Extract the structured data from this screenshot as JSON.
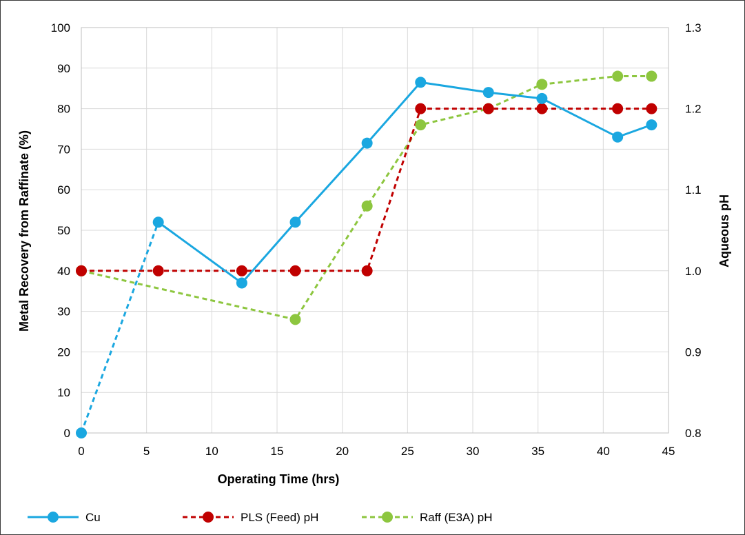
{
  "chart_data": {
    "type": "line",
    "xlabel": "Operating Time (hrs)",
    "ylabel": "Metal Recovery from Raffinate (%)",
    "y2label": "Aqueous pH",
    "xlim": [
      0,
      45
    ],
    "ylim": [
      0,
      100
    ],
    "y2lim": [
      0.8,
      1.3
    ],
    "xticks": [
      "0",
      "5",
      "10",
      "15",
      "20",
      "25",
      "30",
      "35",
      "40",
      "45"
    ],
    "yticks": [
      "0",
      "10",
      "20",
      "30",
      "40",
      "50",
      "60",
      "70",
      "80",
      "90",
      "100"
    ],
    "y2ticks": [
      "0.8",
      "0.9",
      "1.0",
      "1.1",
      "1.2",
      "1.3"
    ],
    "grid": true,
    "legend_position": "bottom",
    "series": [
      {
        "name": "Cu",
        "axis": "left",
        "color": "#1aa7e0",
        "style": "solid",
        "first_segment_dashed": true,
        "x": [
          0,
          5.9,
          12.3,
          16.4,
          21.9,
          26,
          31.2,
          35.3,
          41.1,
          43.7
        ],
        "y": [
          0,
          52,
          37,
          52,
          71.5,
          86.5,
          84,
          82.5,
          73,
          76
        ]
      },
      {
        "name": "PLS (Feed) pH",
        "axis": "right",
        "color": "#c00000",
        "style": "dashed",
        "x": [
          0,
          5.9,
          12.3,
          16.4,
          21.9,
          26,
          31.2,
          35.3,
          41.1,
          43.7
        ],
        "y": [
          1.0,
          1.0,
          1.0,
          1.0,
          1.0,
          1.2,
          1.2,
          1.2,
          1.2,
          1.2
        ]
      },
      {
        "name": "Raff (E3A) pH",
        "axis": "right",
        "color": "#8dc63f",
        "style": "dashed",
        "x": [
          0,
          16.4,
          21.9,
          26,
          31.2,
          35.3,
          41.1,
          43.7
        ],
        "y": [
          1.0,
          0.94,
          1.08,
          1.18,
          1.2,
          1.23,
          1.24,
          1.24
        ]
      }
    ]
  }
}
